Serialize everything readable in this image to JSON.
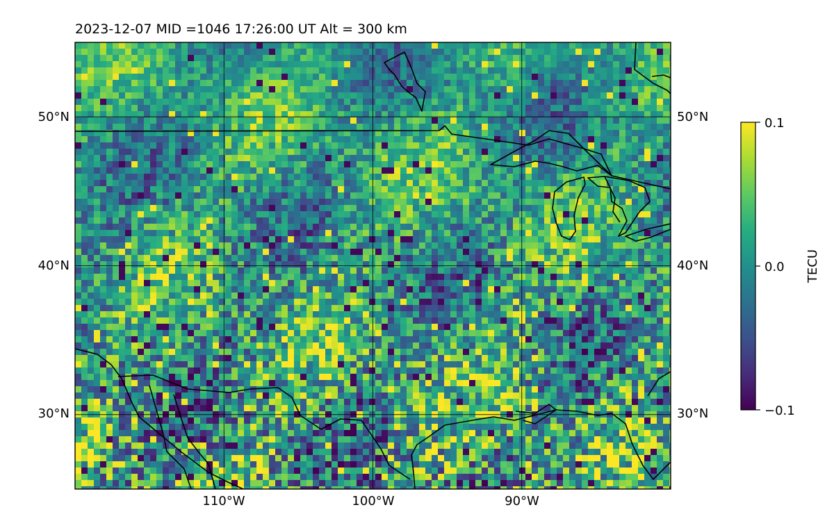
{
  "map": {
    "title": "2023-12-07  MID =1046    17:26:00  UT  Alt = 300 km",
    "lon_range": [
      -120,
      -80
    ],
    "lat_range": [
      25,
      55
    ],
    "gridlines": {
      "lon": [
        -110,
        -100,
        -90
      ],
      "lat": [
        30,
        40,
        50
      ],
      "lon_labels": [
        "110°W",
        "100°W",
        "90°W"
      ],
      "lat_labels": [
        "30°N",
        "40°N",
        "50°N"
      ]
    },
    "colormap": "viridis",
    "colors": {
      "low": "#440154",
      "mid": "#21908c",
      "high": "#fde725",
      "coastline": "#000000",
      "gridline": "#000000"
    },
    "field_variable": "TECU"
  },
  "colorbar": {
    "label": "TECU",
    "ticks": [
      {
        "value": 0.1,
        "label": "0.1"
      },
      {
        "value": 0.0,
        "label": "0.0"
      },
      {
        "value": -0.1,
        "label": "−0.1"
      }
    ],
    "range": [
      -0.1,
      0.1
    ]
  }
}
